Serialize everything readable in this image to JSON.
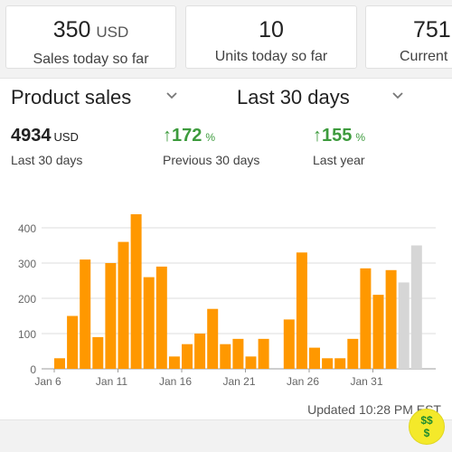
{
  "cards": [
    {
      "value": "350",
      "unit": "USD",
      "label": "Sales today so far"
    },
    {
      "value": "10",
      "unit": "",
      "label": "Units today so far"
    },
    {
      "value": "751",
      "unit": "",
      "label": "Current"
    }
  ],
  "selectors": {
    "metric": "Product sales",
    "period": "Last 30 days"
  },
  "stats": {
    "total": {
      "value": "4934",
      "unit": "USD",
      "label": "Last 30 days"
    },
    "previous": {
      "arrow": "↑",
      "value": "172",
      "unit": "%",
      "label": "Previous 30 days"
    },
    "last_year": {
      "arrow": "↑",
      "value": "155",
      "unit": "%",
      "label": "Last year"
    }
  },
  "updated_text": "Updated 10:28 PM EST",
  "badge": {
    "line1": "$$",
    "line2": "$"
  },
  "colors": {
    "bar": "#ff9800",
    "bar_projected": "#d6d6d6",
    "growth": "#3d9b3d"
  },
  "chart_data": {
    "type": "bar",
    "ylim": [
      0,
      450
    ],
    "yticks": [
      "0",
      "100",
      "200",
      "300",
      "400"
    ],
    "xtick_labels": [
      {
        "index": 0,
        "label": "Jan 6"
      },
      {
        "index": 5,
        "label": "Jan 11"
      },
      {
        "index": 10,
        "label": "Jan 16"
      },
      {
        "index": 15,
        "label": "Jan 21"
      },
      {
        "index": 20,
        "label": "Jan 26"
      },
      {
        "index": 25,
        "label": "Jan 31"
      }
    ],
    "values": [
      30,
      150,
      310,
      90,
      300,
      360,
      450,
      260,
      290,
      35,
      70,
      100,
      170,
      70,
      85,
      35,
      85,
      0,
      140,
      330,
      60,
      30,
      30,
      85,
      285,
      210,
      280,
      245,
      350
    ],
    "projected_from_index": 27
  }
}
